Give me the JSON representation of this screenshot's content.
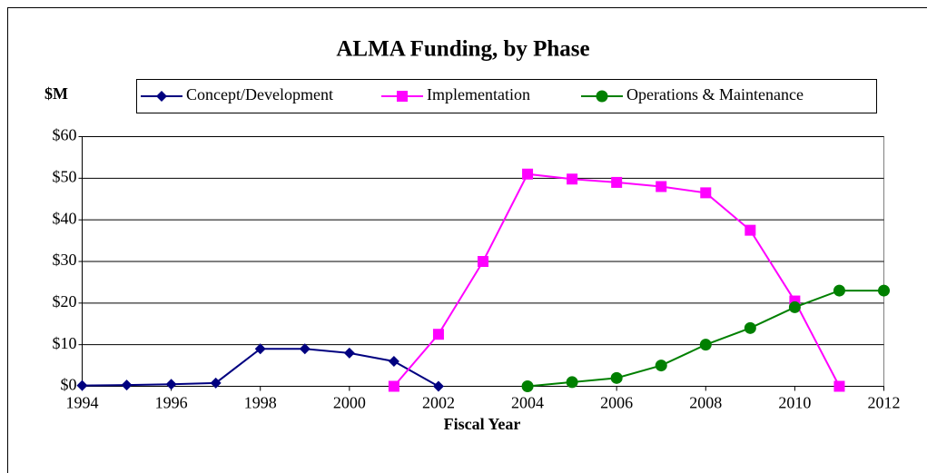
{
  "chart_data": {
    "type": "line",
    "title": "ALMA Funding, by Phase",
    "y_label": "$M",
    "x_label": "Fiscal Year",
    "xlim": [
      1994,
      2012
    ],
    "xticks": [
      1994,
      1996,
      1998,
      2000,
      2002,
      2004,
      2006,
      2008,
      2010,
      2012
    ],
    "ylim": [
      0,
      60
    ],
    "yticks": [
      {
        "value": 0,
        "label": "$0"
      },
      {
        "value": 10,
        "label": "$10"
      },
      {
        "value": 20,
        "label": "$20"
      },
      {
        "value": 30,
        "label": "$30"
      },
      {
        "value": 40,
        "label": "$40"
      },
      {
        "value": 50,
        "label": "$50"
      },
      {
        "value": 60,
        "label": "$60"
      }
    ],
    "grid": true,
    "legend": "top",
    "series": [
      {
        "name": "Concept/Development",
        "color": "#000080",
        "marker": "diamond",
        "x": [
          1994,
          1995,
          1996,
          1997,
          1998,
          1999,
          2000,
          2001,
          2002
        ],
        "values": [
          0.2,
          0.3,
          0.5,
          0.8,
          9,
          9,
          8,
          6,
          0
        ]
      },
      {
        "name": "Implementation",
        "color": "#ff00ff",
        "marker": "square",
        "x": [
          2001,
          2002,
          2003,
          2004,
          2005,
          2006,
          2007,
          2008,
          2009,
          2010,
          2011
        ],
        "values": [
          0,
          12.5,
          30,
          51,
          49.8,
          49,
          48,
          46.5,
          37.5,
          20.5,
          0
        ]
      },
      {
        "name": "Operations & Maintenance",
        "color": "#008000",
        "marker": "circle",
        "x": [
          2004,
          2005,
          2006,
          2007,
          2008,
          2009,
          2010,
          2011,
          2012
        ],
        "values": [
          0,
          1,
          2,
          5,
          10,
          14,
          19,
          23,
          23
        ]
      }
    ]
  }
}
